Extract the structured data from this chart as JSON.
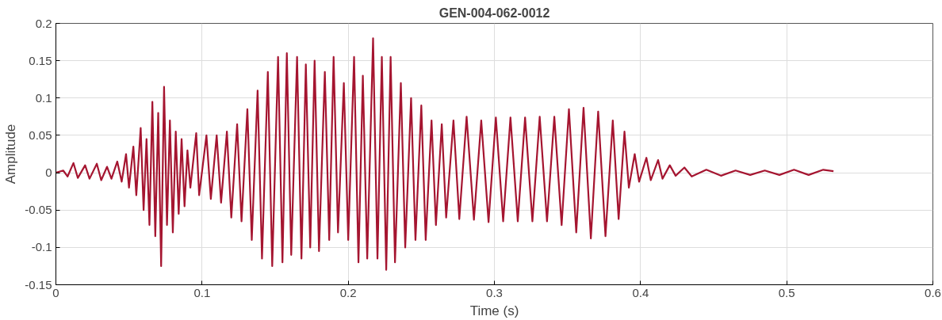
{
  "chart_data": {
    "type": "line",
    "title": "GEN-004-062-0012",
    "xlabel": "Time (s)",
    "ylabel": "Amplitude",
    "xlim": [
      0,
      0.6
    ],
    "xticks": [
      0,
      0.1,
      0.2,
      0.3,
      0.4,
      0.5,
      0.6
    ],
    "ylim": [
      -0.15,
      0.2
    ],
    "yticks": [
      -0.15,
      -0.1,
      -0.05,
      0,
      0.05,
      0.1,
      0.15,
      0.2
    ],
    "grid": true,
    "line_style": "solid",
    "series": [
      {
        "color": "#a51530",
        "x": [
          0,
          0.005,
          0.008,
          0.012,
          0.015,
          0.02,
          0.023,
          0.028,
          0.031,
          0.035,
          0.038,
          0.042,
          0.045,
          0.048,
          0.05,
          0.053,
          0.055,
          0.058,
          0.06,
          0.062,
          0.064,
          0.066,
          0.068,
          0.07,
          0.072,
          0.074,
          0.076,
          0.078,
          0.08,
          0.082,
          0.084,
          0.086,
          0.088,
          0.09,
          0.092,
          0.096,
          0.098,
          0.103,
          0.106,
          0.11,
          0.113,
          0.117,
          0.12,
          0.124,
          0.127,
          0.131,
          0.134,
          0.138,
          0.141,
          0.145,
          0.148,
          0.152,
          0.155,
          0.158,
          0.161,
          0.165,
          0.168,
          0.171,
          0.174,
          0.177,
          0.18,
          0.184,
          0.187,
          0.19,
          0.193,
          0.197,
          0.2,
          0.204,
          0.207,
          0.21,
          0.213,
          0.217,
          0.22,
          0.223,
          0.226,
          0.229,
          0.232,
          0.236,
          0.239,
          0.243,
          0.246,
          0.25,
          0.253,
          0.257,
          0.26,
          0.264,
          0.267,
          0.272,
          0.276,
          0.281,
          0.286,
          0.291,
          0.296,
          0.301,
          0.306,
          0.311,
          0.316,
          0.321,
          0.326,
          0.331,
          0.336,
          0.341,
          0.346,
          0.351,
          0.356,
          0.361,
          0.366,
          0.371,
          0.376,
          0.381,
          0.385,
          0.389,
          0.392,
          0.396,
          0.399,
          0.404,
          0.407,
          0.412,
          0.415,
          0.42,
          0.424,
          0.43,
          0.435,
          0.445,
          0.455,
          0.465,
          0.475,
          0.485,
          0.495,
          0.505,
          0.515,
          0.525,
          0.532
        ],
        "values": [
          0,
          0.003,
          -0.005,
          0.013,
          -0.007,
          0.01,
          -0.008,
          0.012,
          -0.01,
          0.008,
          -0.008,
          0.015,
          -0.012,
          0.025,
          -0.02,
          0.035,
          -0.03,
          0.06,
          -0.05,
          0.045,
          -0.07,
          0.095,
          -0.085,
          0.08,
          -0.125,
          0.115,
          -0.07,
          0.07,
          -0.08,
          0.055,
          -0.055,
          0.045,
          -0.045,
          0.03,
          -0.02,
          0.053,
          -0.03,
          0.05,
          -0.035,
          0.05,
          -0.04,
          0.055,
          -0.06,
          0.065,
          -0.065,
          0.085,
          -0.09,
          0.11,
          -0.115,
          0.135,
          -0.125,
          0.155,
          -0.12,
          0.16,
          -0.11,
          0.155,
          -0.115,
          0.145,
          -0.1,
          0.15,
          -0.105,
          0.135,
          -0.09,
          0.155,
          -0.08,
          0.12,
          -0.09,
          0.155,
          -0.12,
          0.13,
          -0.115,
          0.18,
          -0.115,
          0.155,
          -0.13,
          0.155,
          -0.12,
          0.12,
          -0.1,
          0.1,
          -0.09,
          0.09,
          -0.09,
          0.07,
          -0.07,
          0.065,
          -0.06,
          0.07,
          -0.062,
          0.075,
          -0.063,
          0.07,
          -0.066,
          0.074,
          -0.065,
          0.074,
          -0.065,
          0.074,
          -0.065,
          0.075,
          -0.065,
          0.075,
          -0.07,
          0.085,
          -0.08,
          0.087,
          -0.088,
          0.082,
          -0.085,
          0.07,
          -0.062,
          0.055,
          -0.02,
          0.025,
          -0.012,
          0.02,
          -0.01,
          0.017,
          -0.008,
          0.01,
          -0.004,
          0.007,
          -0.005,
          0.004,
          -0.004,
          0.003,
          -0.003,
          0.003,
          -0.003,
          0.004,
          -0.003,
          0.004,
          0.002
        ]
      }
    ]
  }
}
